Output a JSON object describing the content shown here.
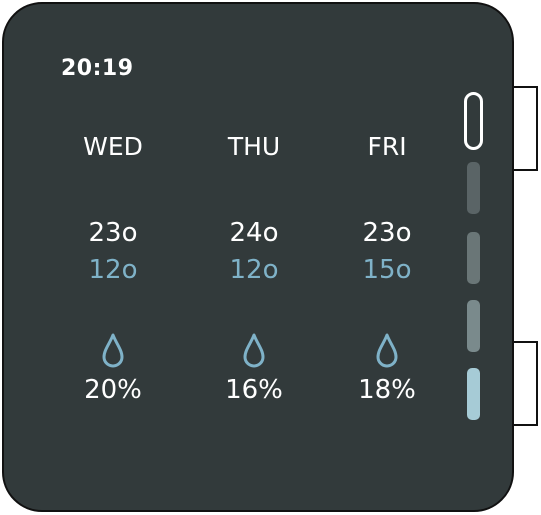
{
  "screen": {
    "time": "20:19"
  },
  "forecast": [
    {
      "day": "WED",
      "high": "23o",
      "low": "12o",
      "precip": "20%"
    },
    {
      "day": "THU",
      "high": "24o",
      "low": "12o",
      "precip": "16%"
    },
    {
      "day": "FRI",
      "high": "23o",
      "low": "15o",
      "precip": "18%"
    }
  ],
  "colors": {
    "background": "#323a3b",
    "text": "#ffffff",
    "low_temp": "#7fb2c8",
    "drop_icon": "#7fb2c8",
    "indicator_1": "#5a6466",
    "indicator_2": "#6a7677",
    "indicator_3": "#7a8a8c",
    "indicator_4": "#a6cbd6"
  },
  "icons": {
    "drop": "water-drop-icon"
  },
  "page_indicator": {
    "pages": 5,
    "current": 1
  }
}
